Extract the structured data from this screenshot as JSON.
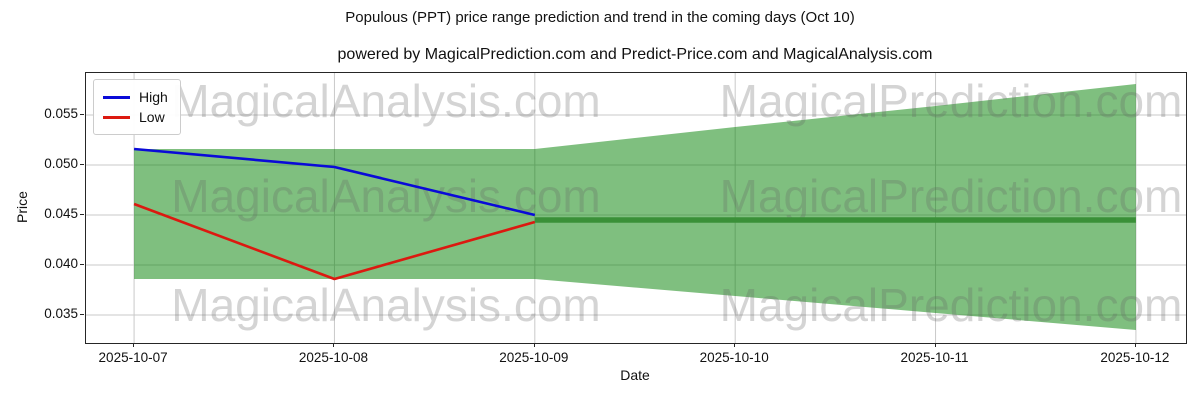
{
  "title": "Populous (PPT) price range prediction and trend in the coming days (Oct 10)",
  "subtitle": "powered by MagicalPrediction.com and Predict-Price.com and MagicalAnalysis.com",
  "watermarks": {
    "left_text": "MagicalAnalysis.com",
    "right_text": "MagicalPrediction.com",
    "color": "rgba(100,100,100,0.28)"
  },
  "axis": {
    "ylabel": "Price",
    "xlabel": "Date"
  },
  "legend": {
    "position": "upper left",
    "items": [
      "High",
      "Low"
    ]
  },
  "colors": {
    "high_line": "#0a0ad8",
    "low_line": "#dc1910",
    "trend_line": "#3a9038",
    "band_fill": "#008000",
    "band_opacity": 0.5,
    "grid": "#c9c9c9",
    "spine": "#262626"
  },
  "chart_data": {
    "type": "line",
    "title": "Populous (PPT) price range prediction and trend in the coming days (Oct 10)",
    "xlabel": "Date",
    "ylabel": "Price",
    "categories": [
      "2025-10-07",
      "2025-10-08",
      "2025-10-09",
      "2025-10-10",
      "2025-10-11",
      "2025-10-12"
    ],
    "y_ticks": [
      0.035,
      0.04,
      0.045,
      0.05,
      0.055
    ],
    "ylim": [
      0.0322,
      0.0592
    ],
    "xlim_index": [
      -0.24,
      5.25
    ],
    "grid": true,
    "legend_position": "upper left",
    "series": [
      {
        "name": "High",
        "color": "#0a0ad8",
        "width": 2.6,
        "x": [
          0,
          1,
          2
        ],
        "values": [
          0.0516,
          0.0498,
          0.045
        ]
      },
      {
        "name": "Low",
        "color": "#dc1910",
        "width": 2.6,
        "x": [
          0,
          1,
          2
        ],
        "values": [
          0.0461,
          0.0386,
          0.0443
        ]
      },
      {
        "name": "Trend",
        "color": "#3a9038",
        "width": 5.5,
        "x": [
          2,
          3,
          4,
          5
        ],
        "values": [
          0.0445,
          0.0445,
          0.0445,
          0.0445
        ]
      }
    ],
    "band": {
      "name": "Predicted price range",
      "x": [
        0,
        1,
        2,
        3,
        4,
        5
      ],
      "upper": [
        0.0516,
        0.0516,
        0.0516,
        0.0538,
        0.0559,
        0.0581
      ],
      "lower": [
        0.0386,
        0.0386,
        0.0386,
        0.0369,
        0.0352,
        0.0335
      ]
    }
  }
}
